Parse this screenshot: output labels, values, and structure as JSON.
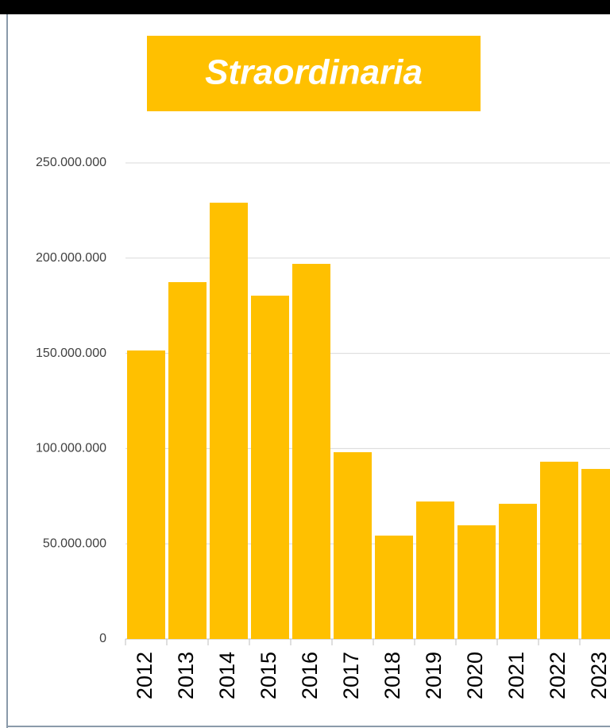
{
  "chart_data": {
    "type": "bar",
    "title": "Straordinaria",
    "categories": [
      "2012",
      "2013",
      "2014",
      "2015",
      "2016",
      "2017",
      "2018",
      "2019",
      "2020",
      "2021",
      "2022",
      "2023"
    ],
    "values": [
      151500000,
      187400000,
      229100000,
      180300000,
      197000000,
      98100000,
      54300000,
      72200000,
      59700000,
      71000000,
      93100000,
      89300000
    ],
    "color": "#ffc000",
    "ylim": [
      0,
      250000000
    ],
    "yticks": [
      0,
      {
        "value": 50000000,
        "label": "50.000.000"
      },
      {
        "value": 100000000,
        "label": "100.000.000"
      },
      {
        "value": 150000000,
        "label": "150.000.000"
      },
      {
        "value": 200000000,
        "label": "200.000.000"
      },
      {
        "value": 250000000,
        "label": "250.000.000"
      }
    ],
    "grid": true
  }
}
